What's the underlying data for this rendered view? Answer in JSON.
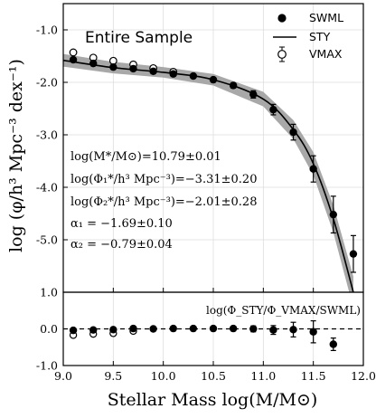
{
  "chart_data": [
    {
      "type": "scatter",
      "panel_title": "Entire Sample",
      "ylabel": "log (φ/h³ Mpc⁻³ dex⁻¹)",
      "xlim": [
        9.0,
        12.0
      ],
      "ylim": [
        -6.0,
        -0.5
      ],
      "yticks": [
        "-1.0",
        "-2.0",
        "-3.0",
        "-4.0",
        "-5.0"
      ],
      "grid": true,
      "legend_position": "top-right",
      "legend": [
        "SWML",
        "STY",
        "VMAX"
      ],
      "annotations": [
        "log(M*/M⊙)=10.79±0.01",
        "log(Φ₁*/h³ Mpc⁻³)=−3.31±0.20",
        "log(Φ₂*/h³ Mpc⁻³)=−2.01±0.28",
        "α₁ = −1.69±0.10",
        "α₂ = −0.79±0.04"
      ],
      "series": [
        {
          "name": "SWML",
          "x": [
            9.1,
            9.3,
            9.5,
            9.7,
            9.9,
            10.1,
            10.3,
            10.5,
            10.7,
            10.9,
            11.1,
            11.3,
            11.5,
            11.7,
            11.9
          ],
          "y": [
            -1.57,
            -1.64,
            -1.71,
            -1.74,
            -1.79,
            -1.84,
            -1.88,
            -1.95,
            -2.06,
            -2.23,
            -2.52,
            -2.95,
            -3.65,
            -4.52,
            -5.27
          ],
          "err": [
            0.03,
            0.03,
            0.03,
            0.03,
            0.03,
            0.03,
            0.03,
            0.04,
            0.05,
            0.07,
            0.1,
            0.15,
            0.25,
            0.35,
            0.35
          ]
        },
        {
          "name": "VMAX",
          "x": [
            9.1,
            9.3,
            9.5,
            9.7,
            9.9,
            10.1
          ],
          "y": [
            -1.43,
            -1.53,
            -1.59,
            -1.66,
            -1.73,
            -1.8
          ]
        },
        {
          "name": "STY",
          "x": [
            9.0,
            9.5,
            10.0,
            10.5,
            11.0,
            11.3,
            11.5,
            11.7,
            11.9
          ],
          "y": [
            -1.58,
            -1.72,
            -1.81,
            -1.95,
            -2.32,
            -2.9,
            -3.55,
            -4.6,
            -6.0
          ],
          "band_halfwidth": [
            0.12,
            0.11,
            0.1,
            0.11,
            0.14,
            0.18,
            0.22,
            0.26,
            0.3
          ]
        }
      ]
    },
    {
      "type": "scatter",
      "panel_label": "log(Φ_STY/Φ_VMAX/SWML)",
      "xlabel": "Stellar Mass log(M/M⊙)",
      "xlim": [
        9.0,
        12.0
      ],
      "ylim": [
        -1.0,
        1.0
      ],
      "xticks": [
        "9.0",
        "9.5",
        "10.0",
        "10.5",
        "11.0",
        "11.5",
        "12.0"
      ],
      "yticks": [
        "1.0",
        "0.0",
        "-1.0"
      ],
      "reference_line": 0.0,
      "series": [
        {
          "name": "SWML",
          "x": [
            9.1,
            9.3,
            9.5,
            9.7,
            9.9,
            10.1,
            10.3,
            10.5,
            10.7,
            10.9,
            11.1,
            11.3,
            11.5,
            11.7
          ],
          "y": [
            -0.04,
            -0.03,
            -0.02,
            0.01,
            0.0,
            0.01,
            0.01,
            0.01,
            0.01,
            0.0,
            -0.03,
            -0.02,
            -0.08,
            -0.42
          ],
          "err": [
            0.04,
            0.04,
            0.04,
            0.04,
            0.04,
            0.04,
            0.04,
            0.05,
            0.06,
            0.08,
            0.12,
            0.2,
            0.3,
            0.17
          ]
        },
        {
          "name": "VMAX",
          "x": [
            9.1,
            9.3,
            9.5,
            9.7
          ],
          "y": [
            -0.17,
            -0.14,
            -0.12,
            -0.06
          ]
        }
      ]
    }
  ]
}
